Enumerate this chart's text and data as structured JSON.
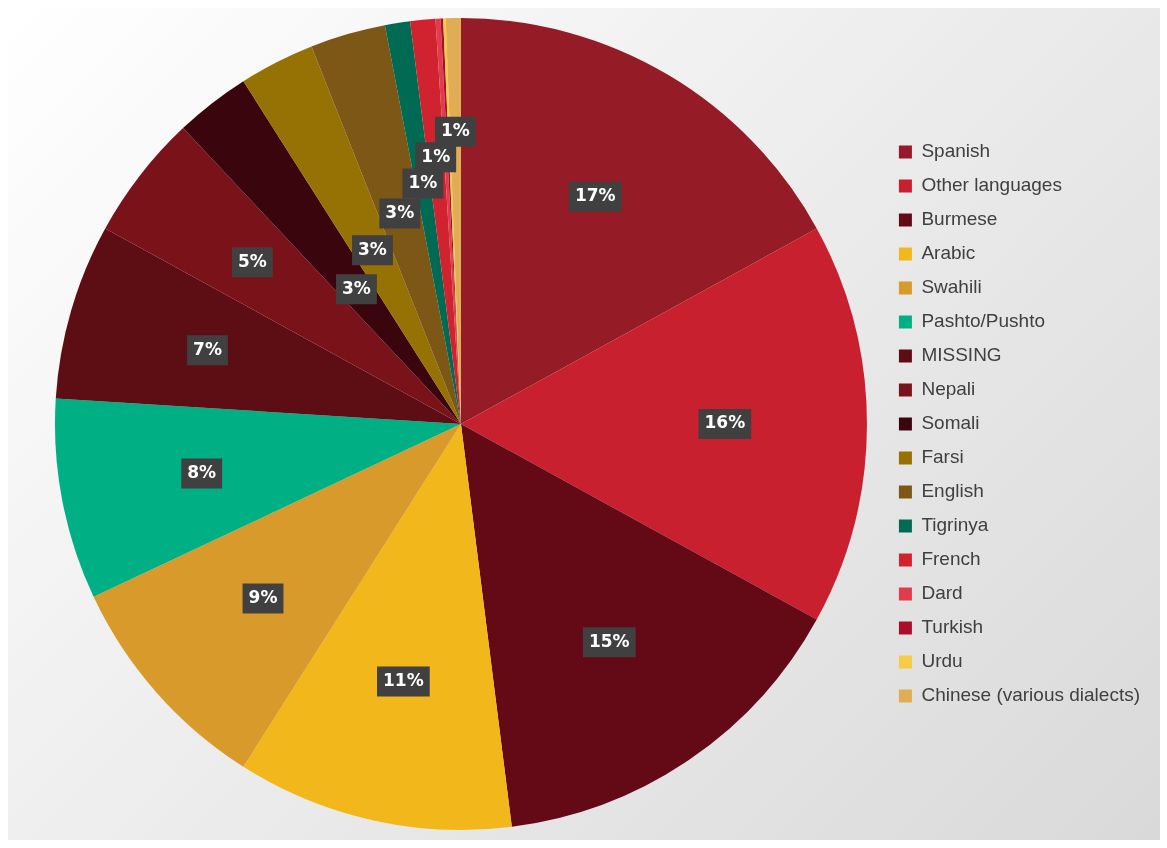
{
  "chart_data": {
    "type": "pie",
    "categories": [
      "Spanish",
      "Other languages",
      "Burmese",
      "Arabic",
      "Swahili",
      "Pashto/Pushto",
      "MISSING",
      "Nepali",
      "Somali",
      "Farsi",
      "English",
      "Tigrinya",
      "French",
      "Dard",
      "Turkish",
      "Urdu",
      "Chinese (various dialects)"
    ],
    "values": [
      17,
      16,
      15,
      11,
      9,
      8,
      7,
      5,
      3,
      3,
      3,
      1,
      1,
      0.2,
      0.1,
      0.1,
      0.6
    ],
    "colors": [
      "#951b26",
      "#c8202e",
      "#640a17",
      "#f2b71b",
      "#d89a2a",
      "#00b084",
      "#5c0e14",
      "#7a1219",
      "#3a050c",
      "#967103",
      "#7c5716",
      "#006b52",
      "#d0222f",
      "#e03c4b",
      "#aa0e2a",
      "#f8cb45",
      "#e0ad55"
    ],
    "value_labels": [
      "17%",
      "16%",
      "15%",
      "11%",
      "9%",
      "8%",
      "7%",
      "5%",
      "3%",
      "3%",
      "3%",
      "1%",
      "1%",
      null,
      null,
      null,
      "1%"
    ],
    "legend": "right"
  }
}
